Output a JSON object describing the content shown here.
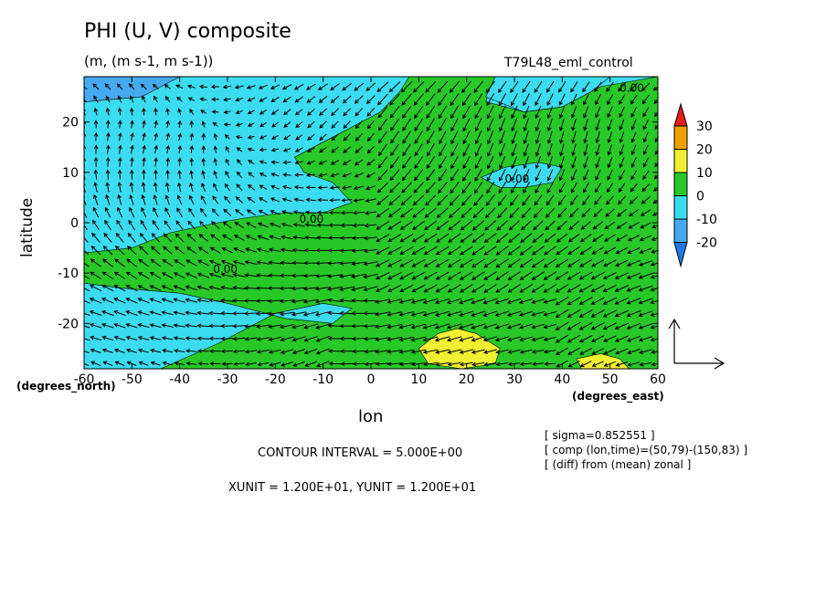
{
  "title": "PHI (U, V) composite",
  "units": "(m, (m s-1, m s-1))",
  "experiment": "T79L48_eml_control",
  "xlabel": "lon",
  "ylabel": "latitude",
  "x_unit_label": "(degrees_east)",
  "y_unit_label": "(degrees_north)",
  "contour_interval": "CONTOUR INTERVAL = 5.000E+00",
  "vector_units": "XUNIT = 1.200E+01, YUNIT = 1.200E+01",
  "info": [
    "[ sigma=0.852551 ]",
    "[ comp (lon,time)=(50,79)-(150,83) ]",
    "[ (diff) from (mean) zonal ]"
  ],
  "colors": {
    "below_minus20": "#1e78e6",
    "minus20_to_minus10": "#46aaf0",
    "minus10_to_0": "#3cdcf0",
    "zero_to_10": "#28c828",
    "ten_to_20": "#f0f032",
    "twenty_to_30": "#f0a000",
    "above_30": "#e61e1e"
  },
  "chart_data": {
    "type": "heatmap",
    "subtype": "filled contour with wind vectors",
    "xlim": [
      -60,
      60
    ],
    "ylim": [
      -29,
      29
    ],
    "xticks": [
      "-60",
      "-50",
      "-40",
      "-30",
      "-20",
      "-10",
      "0",
      "10",
      "20",
      "30",
      "40",
      "50",
      "60"
    ],
    "yticks": [
      "-20",
      "-10",
      "0",
      "10",
      "20"
    ],
    "colorbar": {
      "levels": [
        "-20",
        "-10",
        "0",
        "10",
        "20",
        "30"
      ],
      "extend": "both"
    },
    "contour_labels": [
      {
        "text": "0.00",
        "lon": -15,
        "lat": 0
      },
      {
        "text": "0.00",
        "lon": -33,
        "lat": -10
      },
      {
        "text": "0.00",
        "lon": 28,
        "lat": 8
      },
      {
        "text": "0.00",
        "lon": 52,
        "lat": 26
      }
    ],
    "regions": [
      {
        "level": "minus20_to_minus10",
        "polygon": [
          [
            -60,
            29
          ],
          [
            -60,
            24
          ],
          [
            -48,
            25
          ],
          [
            -40,
            29
          ]
        ]
      },
      {
        "level": "zero_to_10",
        "polygon": [
          [
            -60,
            -6
          ],
          [
            -50,
            -5
          ],
          [
            -42,
            -2
          ],
          [
            -32,
            0
          ],
          [
            -26,
            1
          ],
          [
            -18,
            2
          ],
          [
            -10,
            2
          ],
          [
            -4,
            4
          ],
          [
            -8,
            8
          ],
          [
            -14,
            10
          ],
          [
            -16,
            13
          ],
          [
            -6,
            18
          ],
          [
            2,
            22
          ],
          [
            6,
            26
          ],
          [
            8,
            29
          ],
          [
            26,
            29
          ],
          [
            24,
            24
          ],
          [
            32,
            22
          ],
          [
            40,
            23
          ],
          [
            48,
            27
          ],
          [
            60,
            29
          ],
          [
            60,
            -29
          ],
          [
            -60,
            -29
          ]
        ]
      },
      {
        "level": "minus10_to_0",
        "polygon": [
          [
            -60,
            -29
          ],
          [
            -44,
            -29
          ],
          [
            -32,
            -24
          ],
          [
            -20,
            -18
          ],
          [
            -10,
            -16
          ],
          [
            -4,
            -17
          ],
          [
            -8,
            -20
          ],
          [
            -18,
            -19
          ],
          [
            -30,
            -16
          ],
          [
            -40,
            -14
          ],
          [
            -52,
            -13
          ],
          [
            -60,
            -12
          ]
        ]
      },
      {
        "level": "minus10_to_0",
        "polygon": [
          [
            26,
            29
          ],
          [
            24,
            25
          ],
          [
            32,
            22
          ],
          [
            40,
            23
          ],
          [
            46,
            26
          ],
          [
            50,
            29
          ]
        ]
      },
      {
        "level": "minus10_to_0",
        "polygon": [
          [
            23,
            9
          ],
          [
            28,
            11
          ],
          [
            35,
            12
          ],
          [
            40,
            11
          ],
          [
            38,
            8
          ],
          [
            32,
            7
          ],
          [
            27,
            7
          ]
        ]
      },
      {
        "level": "ten_to_20",
        "polygon": [
          [
            10,
            -25
          ],
          [
            14,
            -22
          ],
          [
            18,
            -21
          ],
          [
            22,
            -22
          ],
          [
            27,
            -25
          ],
          [
            26,
            -28
          ],
          [
            19,
            -29
          ],
          [
            12,
            -28
          ]
        ]
      },
      {
        "level": "ten_to_20",
        "polygon": [
          [
            43,
            -27
          ],
          [
            48,
            -26
          ],
          [
            52,
            -27
          ],
          [
            54,
            -29
          ],
          [
            44,
            -29
          ]
        ]
      }
    ],
    "vector_grid": {
      "lon_step": 2.5,
      "lat_step": 2.5
    }
  }
}
